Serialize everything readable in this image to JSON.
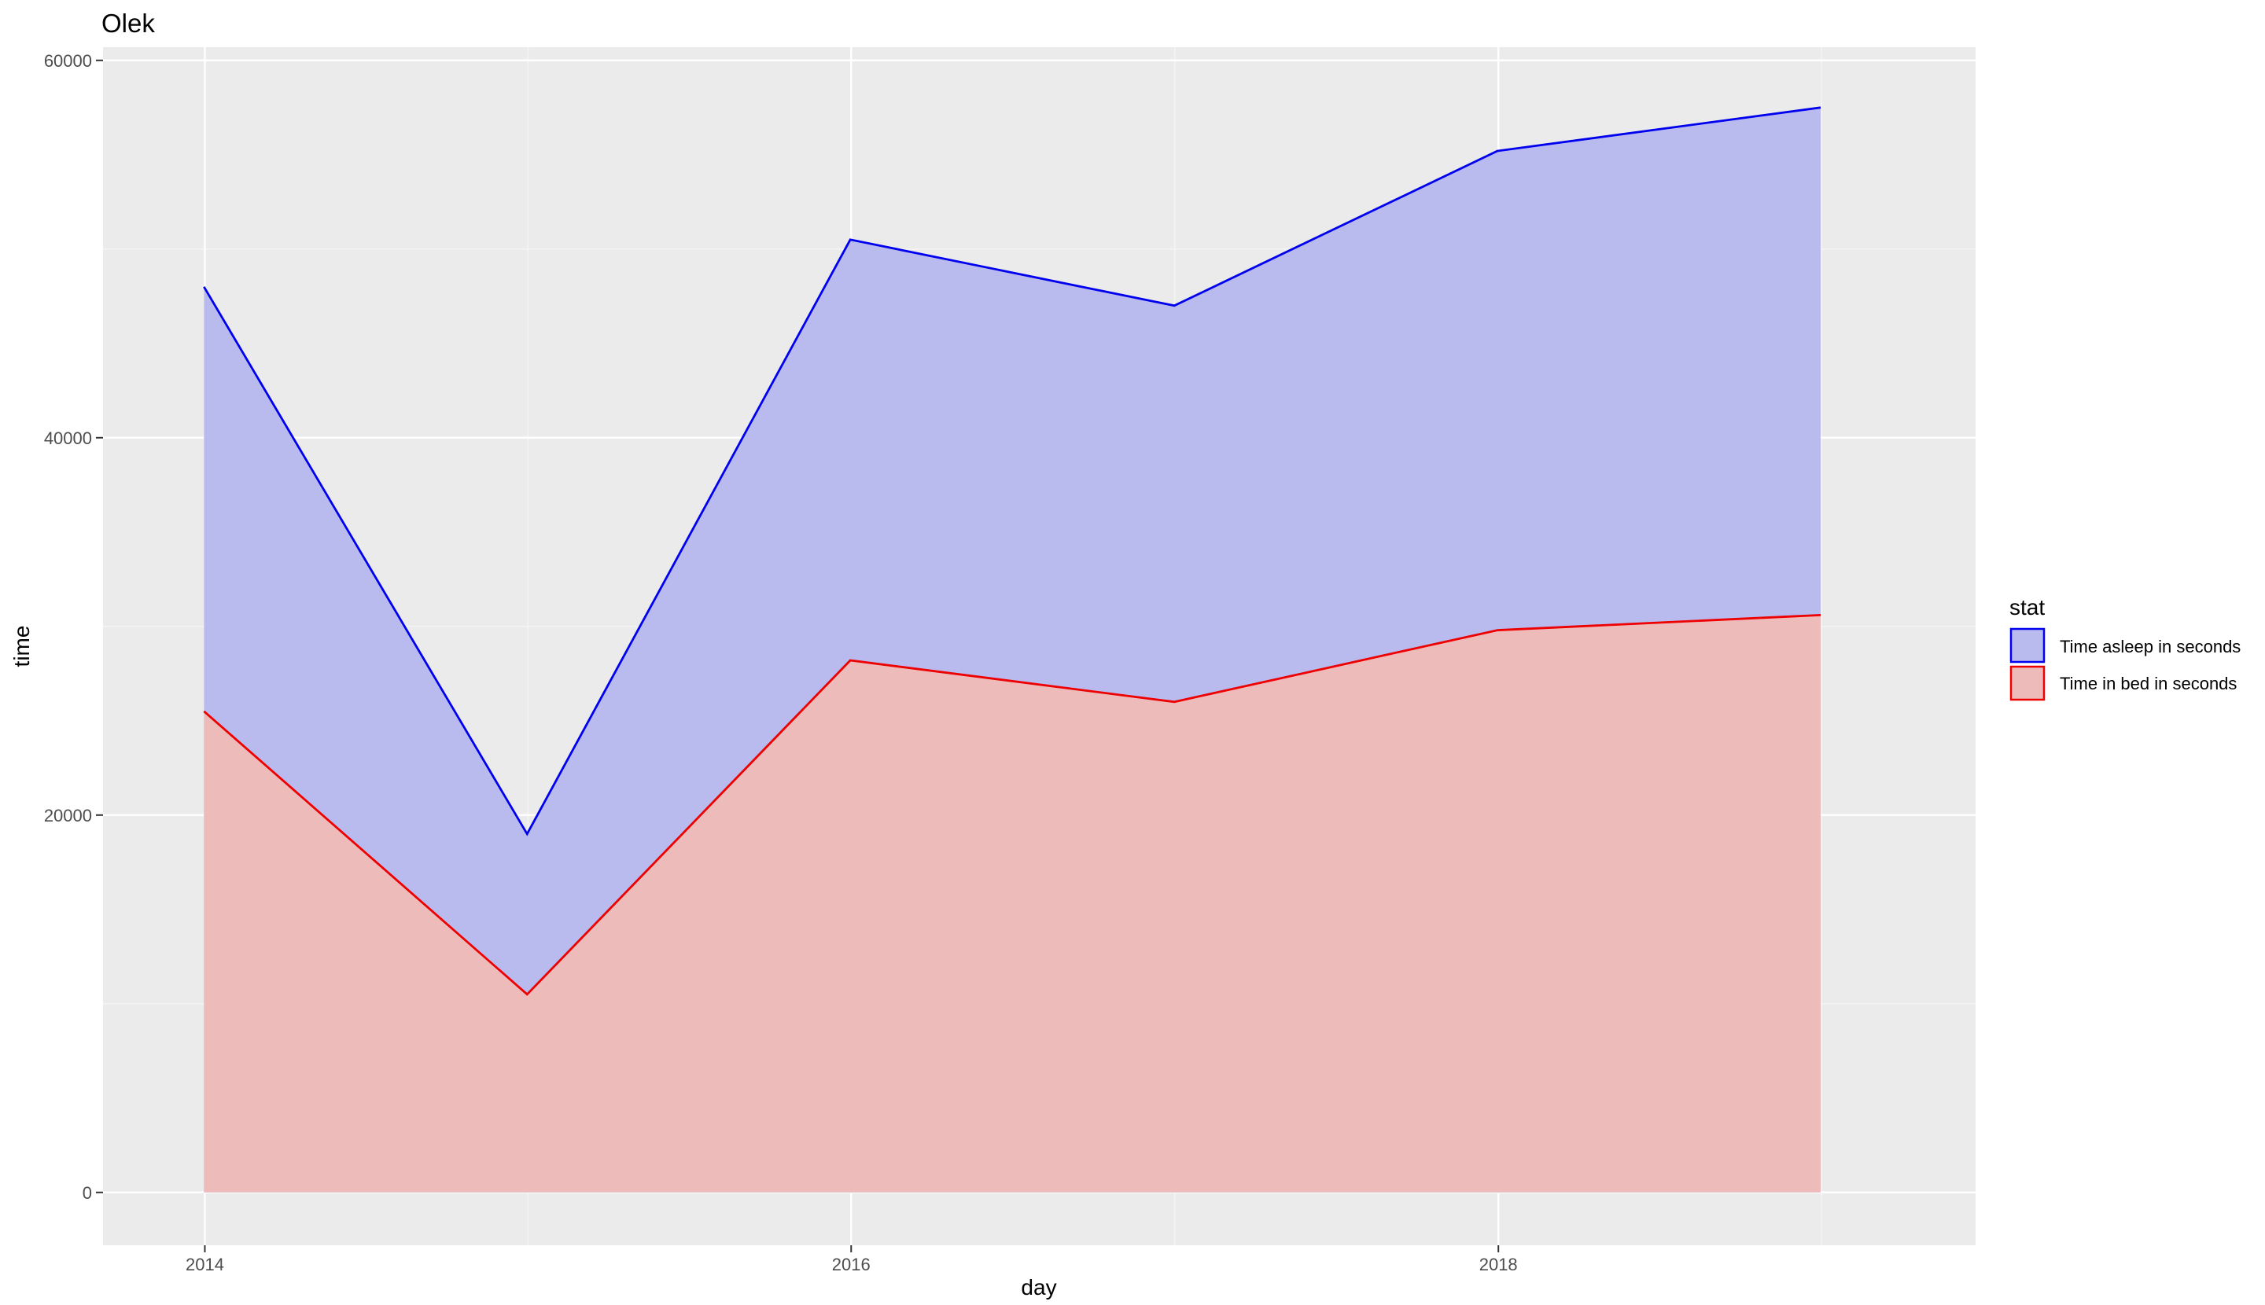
{
  "chart_data": {
    "type": "area",
    "title": "Olek",
    "xlabel": "day",
    "ylabel": "time",
    "x_ticks": [
      "2014",
      "2016",
      "2018"
    ],
    "y_ticks": [
      "0",
      "20000",
      "40000",
      "60000"
    ],
    "xlim": [
      "2013-09-08",
      "2019-06-24"
    ],
    "ylim": [
      -2800,
      60700
    ],
    "legend": {
      "title": "stat",
      "position": "right",
      "entries": [
        {
          "label": "Time asleep in seconds",
          "fill": "#b9bbef",
          "stroke": "#0000ee"
        },
        {
          "label": "Time in bed in seconds",
          "fill": "#eebbbb",
          "stroke": "#ee0000"
        }
      ]
    },
    "x": [
      "2013-12-31",
      "2014-12-31",
      "2015-12-31",
      "2016-12-31",
      "2017-12-31",
      "2018-12-31"
    ],
    "series": [
      {
        "name": "Time asleep in seconds",
        "values": [
          48000,
          19000,
          50500,
          47000,
          55200,
          57500
        ]
      },
      {
        "name": "Time in bed in seconds",
        "values": [
          25500,
          10500,
          28200,
          26000,
          29800,
          30600
        ]
      }
    ],
    "grid": true,
    "colors": {
      "panel": "#ebebeb",
      "grid_major": "#ffffff",
      "grid_minor": "#f4f4f4"
    }
  }
}
